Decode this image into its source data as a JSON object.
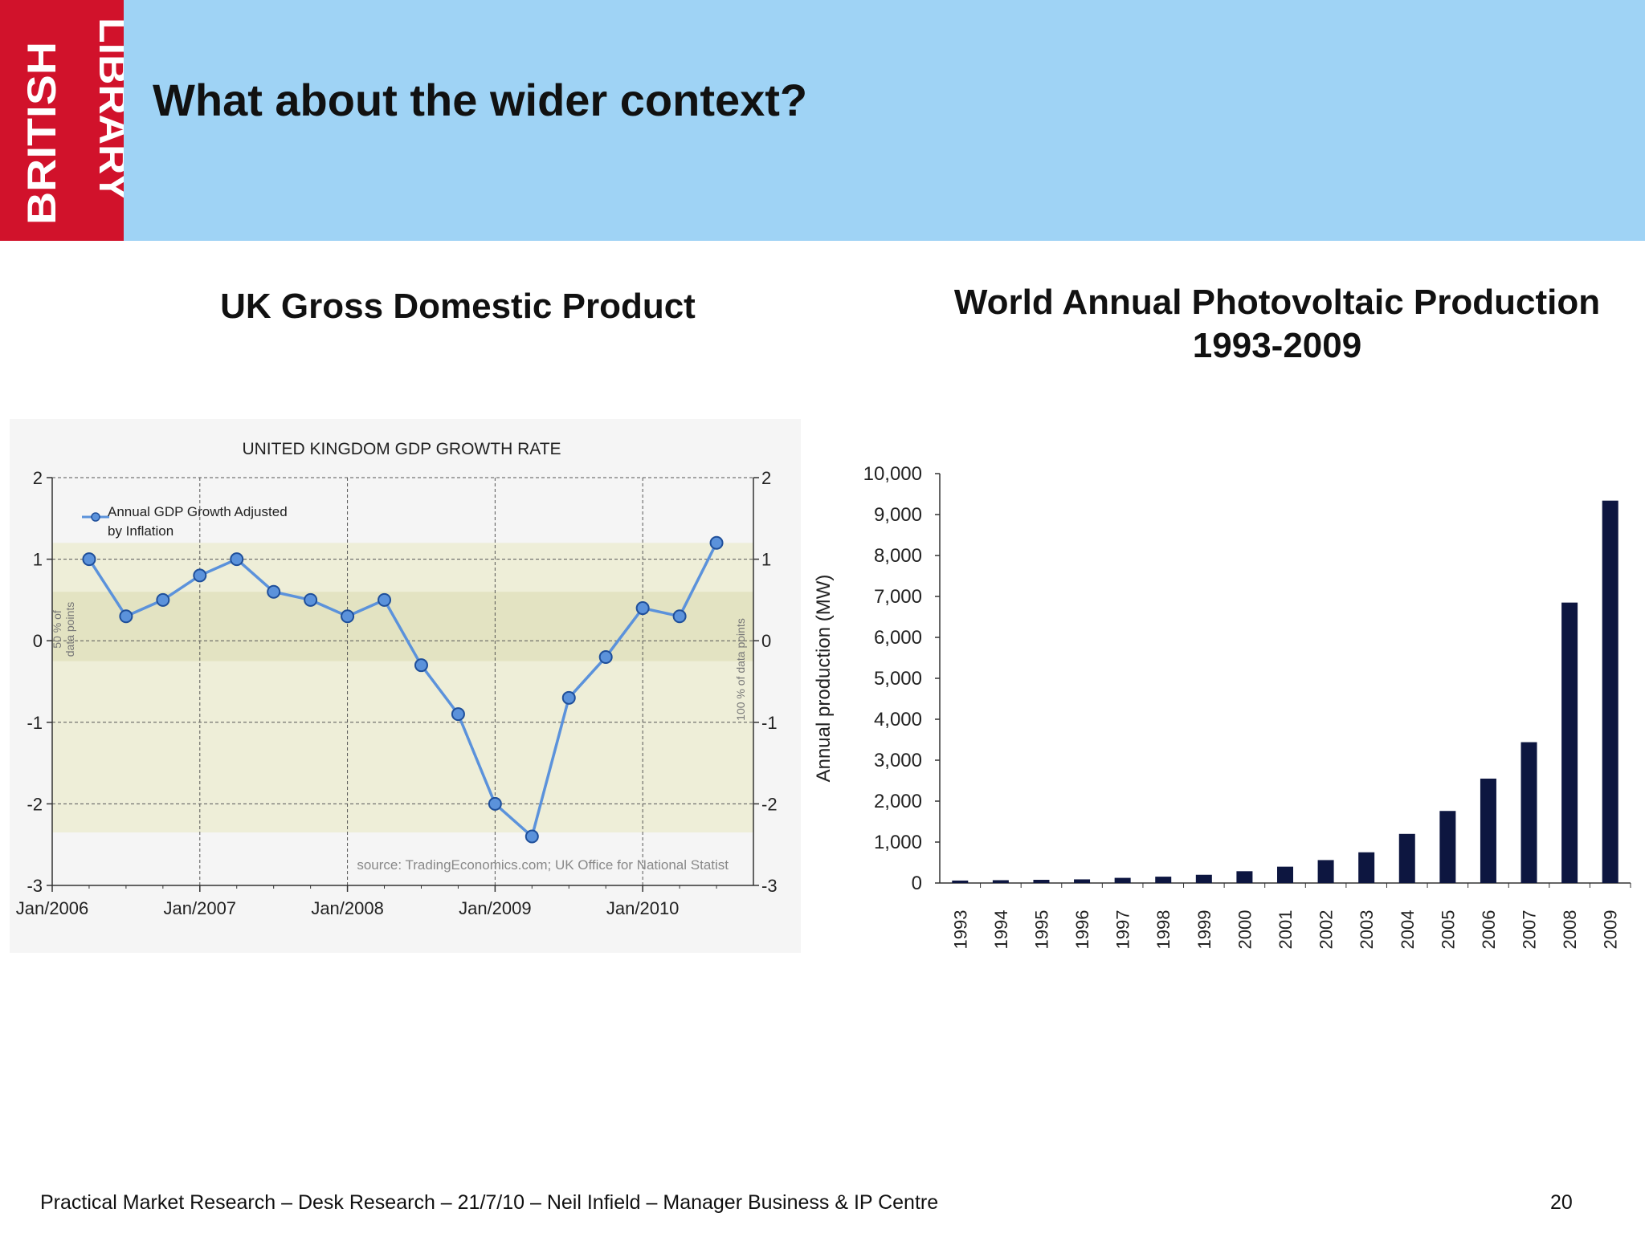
{
  "slide": {
    "title": "What about the wider context?",
    "logo_text": [
      "BRITISH",
      "LIBRARY"
    ],
    "footer": "Practical Market Research – Desk Research – 21/7/10 – Neil Infield – Manager Business & IP Centre",
    "page_number": "20"
  },
  "colors": {
    "header_band": "#9fd3f5",
    "logo_red": "#d1122b",
    "line_series": "#5b92db",
    "bar_fill": "#0d1640"
  },
  "chart_data": [
    {
      "type": "line",
      "heading": "UK Gross Domestic Product",
      "title": "UNITED KINGDOM GDP GROWTH RATE",
      "x_ticks": [
        "Jan/2006",
        "Jan/2007",
        "Jan/2008",
        "Jan/2009",
        "Jan/2010"
      ],
      "x_range": [
        0,
        19
      ],
      "y_ticks": [
        2,
        1,
        0,
        -1,
        -2,
        -3
      ],
      "ylim": [
        -3,
        2
      ],
      "grid": true,
      "legend_position": "top-left",
      "series": [
        {
          "name": "Annual GDP Growth Adjusted by Inflation",
          "x": [
            1,
            2,
            3,
            4,
            5,
            6,
            7,
            8,
            9,
            10,
            11,
            12,
            13,
            14,
            15,
            16,
            17,
            18
          ],
          "values": [
            1.0,
            0.3,
            0.5,
            0.8,
            1.0,
            0.6,
            0.5,
            0.3,
            0.5,
            -0.3,
            -0.9,
            -2.0,
            -2.4,
            -0.7,
            -0.2,
            0.4,
            0.3,
            1.2
          ]
        }
      ],
      "bands": [
        {
          "label": "50 % of data points",
          "range": [
            -0.25,
            0.6
          ]
        },
        {
          "label": "100 % of data points",
          "range": [
            -2.35,
            1.2
          ]
        }
      ],
      "left_band_label": [
        "50 % of",
        "data points"
      ],
      "right_band_label": "100 % of data points",
      "source": "source: TradingEconomics.com; UK Office for National Statist"
    },
    {
      "type": "bar",
      "title_lines": [
        "World Annual Photovoltaic Production",
        "1993-2009"
      ],
      "ylabel": "Annual production (MW)",
      "ylim": [
        0,
        10000
      ],
      "y_ticks": [
        "10,000",
        "9,000",
        "8,000",
        "7,000",
        "6,000",
        "5,000",
        "4,000",
        "3,000",
        "2,000",
        "1,000",
        "0"
      ],
      "categories": [
        "1993",
        "1994",
        "1995",
        "1996",
        "1997",
        "1998",
        "1999",
        "2000",
        "2001",
        "2002",
        "2003",
        "2004",
        "2005",
        "2006",
        "2007",
        "2008",
        "2009"
      ],
      "values": [
        60,
        69,
        78,
        89,
        126,
        155,
        201,
        288,
        399,
        560,
        750,
        1200,
        1760,
        2550,
        3440,
        6850,
        9340
      ]
    }
  ]
}
